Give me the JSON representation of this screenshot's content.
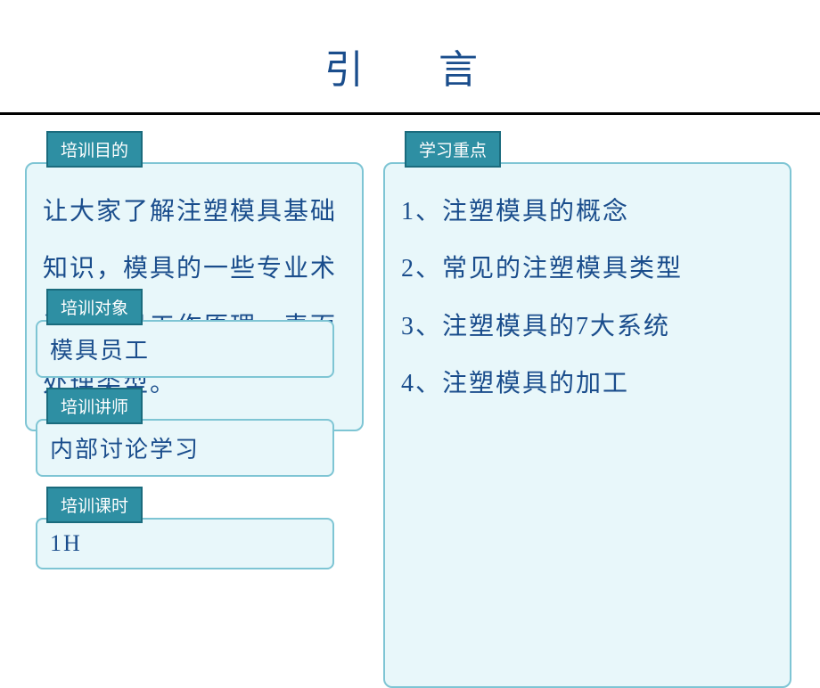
{
  "title": "引　言",
  "labels": {
    "purpose": "培训目的",
    "target": "培训对象",
    "lecturer": "培训讲师",
    "hours": "培训课时",
    "keypoints": "学习重点"
  },
  "left": {
    "purpose_text": "让大家了解注塑模具基础知识，模具的一些专业术语，模具工作原理，表面处理类型。",
    "target_text": "模具员工",
    "lecturer_text": "内部讨论学习",
    "hours_text": "1H"
  },
  "right": {
    "line1": "1、注塑模具的概念",
    "line2": "2、常见的注塑模具类型",
    "line3": "3、注塑模具的7大系统",
    "line4": "4、注塑模具的加工"
  },
  "colors": {
    "title_color": "#1a4d8c",
    "label_bg": "#2e8fa3",
    "label_border": "#1a6b7d",
    "box_bg": "#e8f7fa",
    "box_border": "#7ec5d4",
    "text_color": "#1a4d8c",
    "divider": "#000000"
  }
}
